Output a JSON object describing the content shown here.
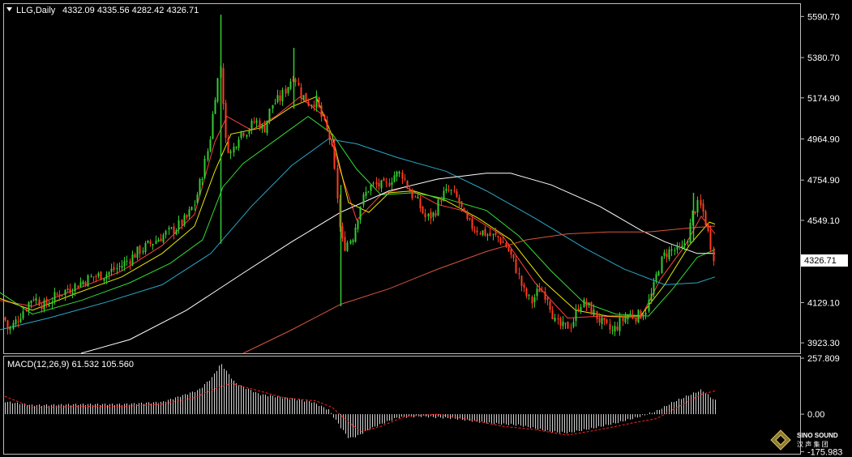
{
  "header": {
    "symbol": "LLG,Daily",
    "ohlc": "4332.09 4335.56 4282.42 4326.71"
  },
  "price_axis": {
    "ticks": [
      "5590.70",
      "5380.70",
      "5174.90",
      "4964.90",
      "4754.90",
      "4549.10",
      "4326.71",
      "4129.10",
      "3923.30"
    ],
    "current": "4326.71"
  },
  "macd_panel": {
    "label": "MACD(12,26,9) 61.532 105.560",
    "ticks": [
      "257.809",
      "0.00",
      "-175.983"
    ]
  },
  "watermark": {
    "brand": "SINO SOUND",
    "sub": "汉 声 集 团"
  },
  "colors": {
    "bull": "#32cd32",
    "bear": "#ff3b1f",
    "ma_fast": "#ff4040",
    "ma_yellow": "#e8e800",
    "ma_green": "#33dd33",
    "ma_cyan": "#2aa7c7",
    "ma_white": "#ffffff",
    "ma_salmon": "#d8553c",
    "macd_hist": "#d0d0d0",
    "macd_signal": "#ff2020"
  },
  "chart_data": {
    "type": "candlestick",
    "symbol": "LLG",
    "timeframe": "Daily",
    "last": {
      "open": 4332.09,
      "high": 4335.56,
      "low": 4282.42,
      "close": 4326.71
    },
    "ylim": [
      3870,
      5650
    ],
    "price_path": [
      [
        0,
        4120
      ],
      [
        10,
        3985
      ],
      [
        22,
        4050
      ],
      [
        40,
        4160
      ],
      [
        55,
        4110
      ],
      [
        70,
        4170
      ],
      [
        90,
        4210
      ],
      [
        110,
        4255
      ],
      [
        130,
        4275
      ],
      [
        150,
        4320
      ],
      [
        170,
        4390
      ],
      [
        185,
        4430
      ],
      [
        200,
        4470
      ],
      [
        215,
        4505
      ],
      [
        230,
        4560
      ],
      [
        240,
        4640
      ],
      [
        250,
        4800
      ],
      [
        258,
        4950
      ],
      [
        265,
        5190
      ],
      [
        272,
        5350
      ],
      [
        278,
        4950
      ],
      [
        285,
        4890
      ],
      [
        295,
        5000
      ],
      [
        305,
        5010
      ],
      [
        315,
        5060
      ],
      [
        325,
        5010
      ],
      [
        335,
        5140
      ],
      [
        345,
        5170
      ],
      [
        355,
        5240
      ],
      [
        362,
        5300
      ],
      [
        370,
        5200
      ],
      [
        380,
        5150
      ],
      [
        390,
        5160
      ],
      [
        400,
        5030
      ],
      [
        408,
        4950
      ],
      [
        415,
        4700
      ],
      [
        420,
        4450
      ],
      [
        425,
        4420
      ],
      [
        435,
        4470
      ],
      [
        445,
        4640
      ],
      [
        455,
        4720
      ],
      [
        465,
        4730
      ],
      [
        475,
        4720
      ],
      [
        485,
        4780
      ],
      [
        495,
        4790
      ],
      [
        505,
        4700
      ],
      [
        515,
        4640
      ],
      [
        525,
        4560
      ],
      [
        535,
        4580
      ],
      [
        545,
        4680
      ],
      [
        555,
        4700
      ],
      [
        565,
        4650
      ],
      [
        575,
        4540
      ],
      [
        585,
        4510
      ],
      [
        595,
        4490
      ],
      [
        605,
        4470
      ],
      [
        615,
        4460
      ],
      [
        625,
        4410
      ],
      [
        635,
        4320
      ],
      [
        645,
        4190
      ],
      [
        655,
        4130
      ],
      [
        665,
        4200
      ],
      [
        675,
        4160
      ],
      [
        685,
        4020
      ],
      [
        695,
        4000
      ],
      [
        705,
        4020
      ],
      [
        715,
        4130
      ],
      [
        725,
        4110
      ],
      [
        735,
        4060
      ],
      [
        745,
        4010
      ],
      [
        755,
        3980
      ],
      [
        765,
        4030
      ],
      [
        775,
        4070
      ],
      [
        785,
        4060
      ],
      [
        795,
        4080
      ],
      [
        805,
        4190
      ],
      [
        812,
        4310
      ],
      [
        820,
        4380
      ],
      [
        830,
        4400
      ],
      [
        840,
        4390
      ],
      [
        848,
        4470
      ],
      [
        855,
        4600
      ],
      [
        862,
        4630
      ],
      [
        868,
        4580
      ],
      [
        875,
        4450
      ],
      [
        882,
        4326.71
      ]
    ],
    "spikes": [
      {
        "x": 272,
        "high": 5600,
        "low": 4430
      },
      {
        "x": 362,
        "high": 5430,
        "low": 5120
      },
      {
        "x": 420,
        "high": 4730,
        "low": 4110
      },
      {
        "x": 855,
        "high": 4690,
        "low": 4440
      }
    ],
    "moving_averages": [
      {
        "color": "ma_fast",
        "points": [
          [
            0,
            4140
          ],
          [
            40,
            4110
          ],
          [
            90,
            4190
          ],
          [
            150,
            4290
          ],
          [
            200,
            4420
          ],
          [
            240,
            4580
          ],
          [
            265,
            4950
          ],
          [
            280,
            5080
          ],
          [
            310,
            5010
          ],
          [
            340,
            5080
          ],
          [
            370,
            5180
          ],
          [
            400,
            5080
          ],
          [
            420,
            4800
          ],
          [
            440,
            4550
          ],
          [
            470,
            4680
          ],
          [
            500,
            4720
          ],
          [
            540,
            4630
          ],
          [
            570,
            4600
          ],
          [
            620,
            4470
          ],
          [
            660,
            4230
          ],
          [
            700,
            4050
          ],
          [
            740,
            4060
          ],
          [
            790,
            4050
          ],
          [
            815,
            4250
          ],
          [
            845,
            4420
          ],
          [
            865,
            4570
          ],
          [
            882,
            4480
          ]
        ]
      },
      {
        "color": "ma_yellow",
        "points": [
          [
            0,
            4150
          ],
          [
            40,
            4090
          ],
          [
            90,
            4170
          ],
          [
            150,
            4260
          ],
          [
            200,
            4380
          ],
          [
            240,
            4520
          ],
          [
            265,
            4800
          ],
          [
            285,
            4990
          ],
          [
            320,
            5020
          ],
          [
            360,
            5130
          ],
          [
            390,
            5180
          ],
          [
            410,
            4980
          ],
          [
            430,
            4640
          ],
          [
            455,
            4590
          ],
          [
            480,
            4690
          ],
          [
            510,
            4700
          ],
          [
            550,
            4650
          ],
          [
            590,
            4560
          ],
          [
            630,
            4450
          ],
          [
            670,
            4240
          ],
          [
            710,
            4090
          ],
          [
            750,
            4060
          ],
          [
            790,
            4060
          ],
          [
            820,
            4220
          ],
          [
            850,
            4420
          ],
          [
            875,
            4540
          ],
          [
            882,
            4530
          ]
        ]
      },
      {
        "color": "ma_green",
        "points": [
          [
            0,
            4180
          ],
          [
            40,
            4070
          ],
          [
            100,
            4140
          ],
          [
            160,
            4230
          ],
          [
            210,
            4330
          ],
          [
            250,
            4450
          ],
          [
            275,
            4720
          ],
          [
            300,
            4840
          ],
          [
            340,
            4960
          ],
          [
            380,
            5080
          ],
          [
            410,
            4990
          ],
          [
            440,
            4810
          ],
          [
            470,
            4680
          ],
          [
            510,
            4690
          ],
          [
            550,
            4660
          ],
          [
            600,
            4600
          ],
          [
            640,
            4470
          ],
          [
            680,
            4290
          ],
          [
            720,
            4130
          ],
          [
            760,
            4070
          ],
          [
            800,
            4060
          ],
          [
            830,
            4200
          ],
          [
            860,
            4360
          ],
          [
            882,
            4400
          ]
        ]
      },
      {
        "color": "ma_cyan",
        "points": [
          [
            0,
            3990
          ],
          [
            60,
            4050
          ],
          [
            130,
            4130
          ],
          [
            200,
            4220
          ],
          [
            260,
            4380
          ],
          [
            310,
            4620
          ],
          [
            360,
            4830
          ],
          [
            405,
            4965
          ],
          [
            440,
            4940
          ],
          [
            490,
            4870
          ],
          [
            550,
            4800
          ],
          [
            600,
            4700
          ],
          [
            660,
            4560
          ],
          [
            720,
            4410
          ],
          [
            770,
            4300
          ],
          [
            820,
            4220
          ],
          [
            860,
            4230
          ],
          [
            882,
            4260
          ]
        ]
      },
      {
        "color": "ma_white",
        "points": [
          [
            100,
            3870
          ],
          [
            160,
            3940
          ],
          [
            230,
            4090
          ],
          [
            300,
            4280
          ],
          [
            360,
            4440
          ],
          [
            420,
            4590
          ],
          [
            480,
            4700
          ],
          [
            540,
            4760
          ],
          [
            600,
            4790
          ],
          [
            630,
            4790
          ],
          [
            680,
            4730
          ],
          [
            740,
            4620
          ],
          [
            790,
            4500
          ],
          [
            820,
            4440
          ],
          [
            860,
            4380
          ],
          [
            882,
            4380
          ]
        ]
      },
      {
        "color": "ma_salmon",
        "points": [
          [
            300,
            3870
          ],
          [
            360,
            3990
          ],
          [
            420,
            4120
          ],
          [
            480,
            4200
          ],
          [
            540,
            4300
          ],
          [
            600,
            4390
          ],
          [
            650,
            4450
          ],
          [
            700,
            4480
          ],
          [
            750,
            4490
          ],
          [
            800,
            4490
          ],
          [
            850,
            4510
          ],
          [
            882,
            4520
          ]
        ]
      }
    ],
    "macd": {
      "ylim": [
        -175.983,
        257.809
      ],
      "histogram_keys": [
        [
          0,
          60
        ],
        [
          40,
          40
        ],
        [
          100,
          45
        ],
        [
          150,
          45
        ],
        [
          200,
          55
        ],
        [
          245,
          110
        ],
        [
          262,
          170
        ],
        [
          272,
          230
        ],
        [
          290,
          140
        ],
        [
          320,
          90
        ],
        [
          360,
          70
        ],
        [
          385,
          55
        ],
        [
          405,
          20
        ],
        [
          420,
          -60
        ],
        [
          430,
          -110
        ],
        [
          440,
          -100
        ],
        [
          460,
          -60
        ],
        [
          490,
          -15
        ],
        [
          520,
          -10
        ],
        [
          560,
          -20
        ],
        [
          600,
          -40
        ],
        [
          640,
          -50
        ],
        [
          680,
          -80
        ],
        [
          700,
          -85
        ],
        [
          730,
          -65
        ],
        [
          760,
          -40
        ],
        [
          790,
          -10
        ],
        [
          810,
          15
        ],
        [
          830,
          55
        ],
        [
          855,
          95
        ],
        [
          865,
          110
        ],
        [
          882,
          61.532
        ]
      ],
      "signal_keys": [
        [
          0,
          90
        ],
        [
          40,
          30
        ],
        [
          100,
          35
        ],
        [
          150,
          35
        ],
        [
          200,
          45
        ],
        [
          240,
          75
        ],
        [
          265,
          115
        ],
        [
          285,
          140
        ],
        [
          310,
          115
        ],
        [
          350,
          75
        ],
        [
          390,
          60
        ],
        [
          410,
          30
        ],
        [
          425,
          -20
        ],
        [
          445,
          -80
        ],
        [
          470,
          -55
        ],
        [
          500,
          -10
        ],
        [
          540,
          0
        ],
        [
          580,
          -25
        ],
        [
          620,
          -55
        ],
        [
          660,
          -70
        ],
        [
          700,
          -95
        ],
        [
          740,
          -70
        ],
        [
          780,
          -40
        ],
        [
          810,
          -20
        ],
        [
          840,
          40
        ],
        [
          865,
          90
        ],
        [
          882,
          105.56
        ]
      ]
    }
  }
}
